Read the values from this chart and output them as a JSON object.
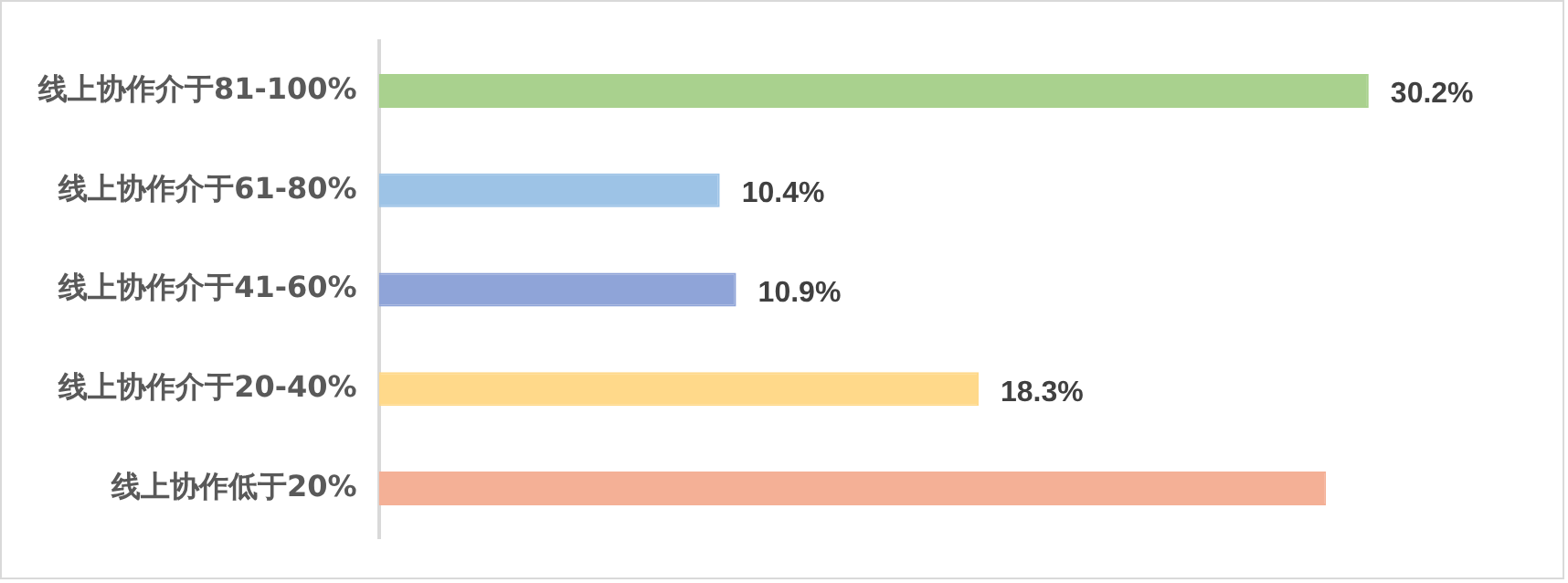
{
  "chart_data": {
    "type": "bar",
    "orientation": "horizontal",
    "categories": [
      "线上协作介于81-100%",
      "线上协作介于61-80%",
      "线上协作介于41-60%",
      "线上协作介于20-40%",
      "线上协作低于20%"
    ],
    "values": [
      30.2,
      10.4,
      10.9,
      18.3,
      28.9
    ],
    "colors": [
      "#a9d18e",
      "#9dc3e6",
      "#8fa4d8",
      "#ffd98a",
      "#f4b096"
    ],
    "value_labels": [
      "30.2%",
      "10.4%",
      "10.9%",
      "18.3%",
      null
    ],
    "tick_labels": "y",
    "legend": false
  }
}
